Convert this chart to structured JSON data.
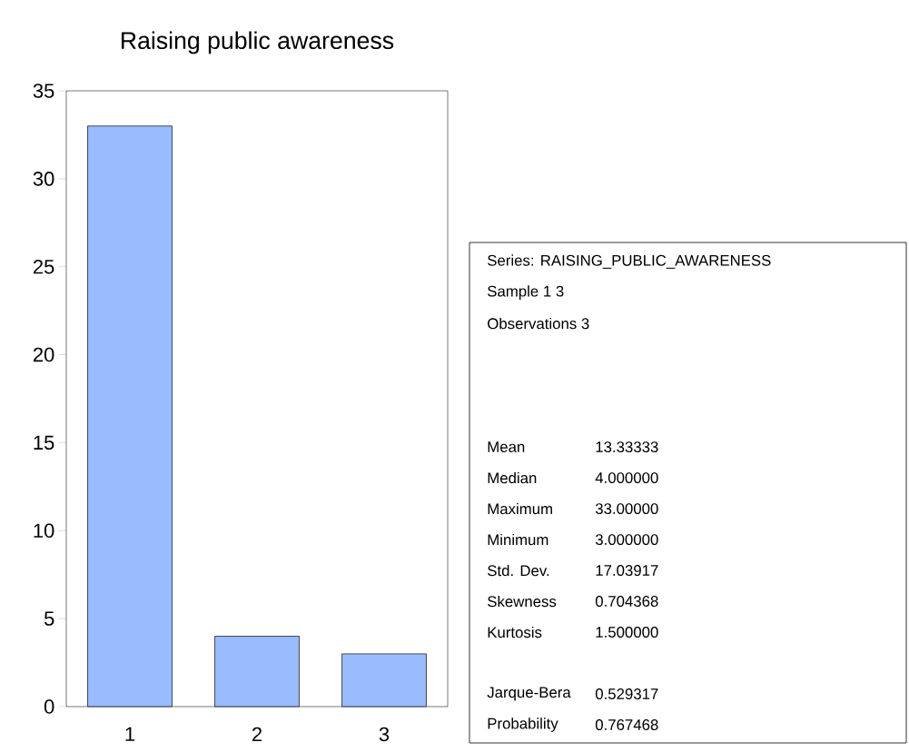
{
  "chart_data": [
    {
      "type": "bar",
      "title": "Raising public awareness",
      "categories": [
        "1",
        "2",
        "3"
      ],
      "values": [
        33,
        4,
        3
      ],
      "color": "#99bbff",
      "ylim": [
        0,
        35
      ],
      "yticks": [
        0,
        5,
        10,
        15,
        20,
        25,
        30,
        35
      ]
    },
    {
      "type": "other",
      "annotations": [
        "Series: RAISING_PUBLIC_AWARENESS",
        "Sample 1 3",
        "Observations 3"
      ],
      "categories": [
        "Mean",
        "Median",
        "Maximum",
        "Minimum",
        "Std. Dev.",
        "Skewness",
        "Kurtosis",
        null,
        "Jarque-Bera",
        "Probability"
      ],
      "values": [
        13.33333,
        4.0,
        33.0,
        3.0,
        17.03917,
        0.704368,
        1.5,
        null,
        0.529317,
        0.767468
      ],
      "value_labels": [
        "13.33333",
        "4.000000",
        "33.00000",
        "3.000000",
        "17.03917",
        "0.704368",
        "1.500000",
        null,
        "0.529317",
        "0.767468"
      ]
    }
  ]
}
